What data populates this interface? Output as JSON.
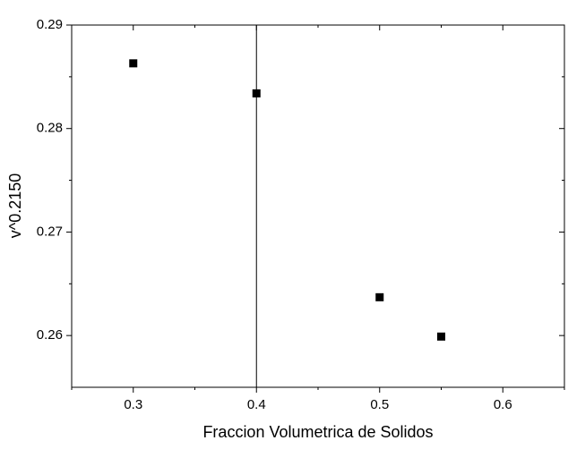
{
  "chart_data": {
    "type": "scatter",
    "x_label": "Fraccion Volumetrica de Solidos",
    "y_label": "v^0.2150",
    "x": [
      0.3,
      0.4,
      0.5,
      0.55
    ],
    "values": [
      0.2863,
      0.2834,
      0.2637,
      0.2599
    ],
    "color": "#000000",
    "xlim": [
      0.25,
      0.65
    ],
    "xticks": [
      0.3,
      0.4,
      0.5,
      0.6
    ],
    "xminor": [
      0.25,
      0.35,
      0.45,
      0.55,
      0.65
    ],
    "ylim": [
      0.255,
      0.29
    ],
    "yticks": [
      0.26,
      0.27,
      0.28,
      0.29
    ],
    "yminor": [
      0.265,
      0.275,
      0.285
    ],
    "vline": 0.4
  }
}
